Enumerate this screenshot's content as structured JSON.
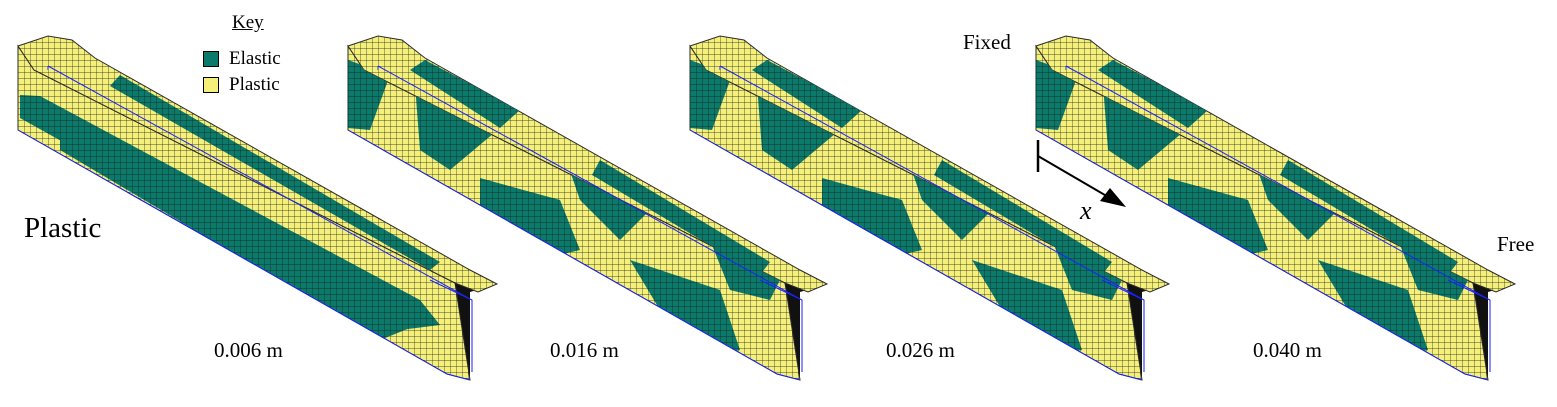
{
  "key": {
    "title": "Key",
    "items": [
      {
        "label": "Elastic",
        "color": "#0b7a6b"
      },
      {
        "label": "Plastic",
        "color": "#f4f07a"
      }
    ]
  },
  "side_label": "Plastic",
  "boundary": {
    "fixed": "Fixed",
    "free": "Free"
  },
  "axis_label": "x",
  "panels": [
    {
      "label": "0.006 m",
      "pattern": "stripes"
    },
    {
      "label": "0.016 m",
      "pattern": "waves"
    },
    {
      "label": "0.026 m",
      "pattern": "waves"
    },
    {
      "label": "0.040 m",
      "pattern": "waves"
    }
  ],
  "colors": {
    "elastic": "#0b7a6b",
    "plastic": "#f4f07a",
    "edge": "#2a2a2a",
    "outline": "#1a22ff"
  }
}
